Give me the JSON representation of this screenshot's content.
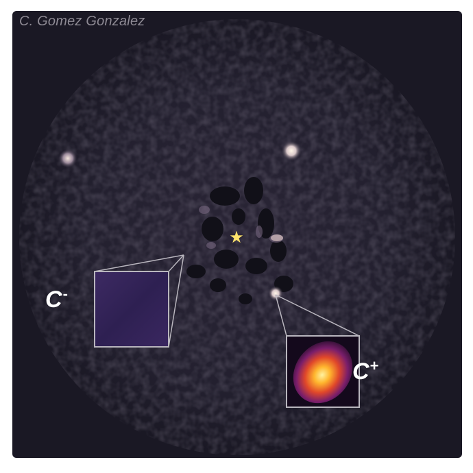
{
  "credit": "C. Gomez Gonzalez",
  "star_symbol": "★",
  "insets": {
    "minus": {
      "letter": "C",
      "sign": "-"
    },
    "plus": {
      "letter": "C",
      "sign": "+"
    }
  },
  "colors": {
    "background": "#1a1824",
    "star": "#ffe36b",
    "inset_minus": "#3a2760",
    "inset_plus_core": "#fff2a0",
    "inset_plus_mid": "#e0472a",
    "inset_frame": "#b9b6be"
  }
}
